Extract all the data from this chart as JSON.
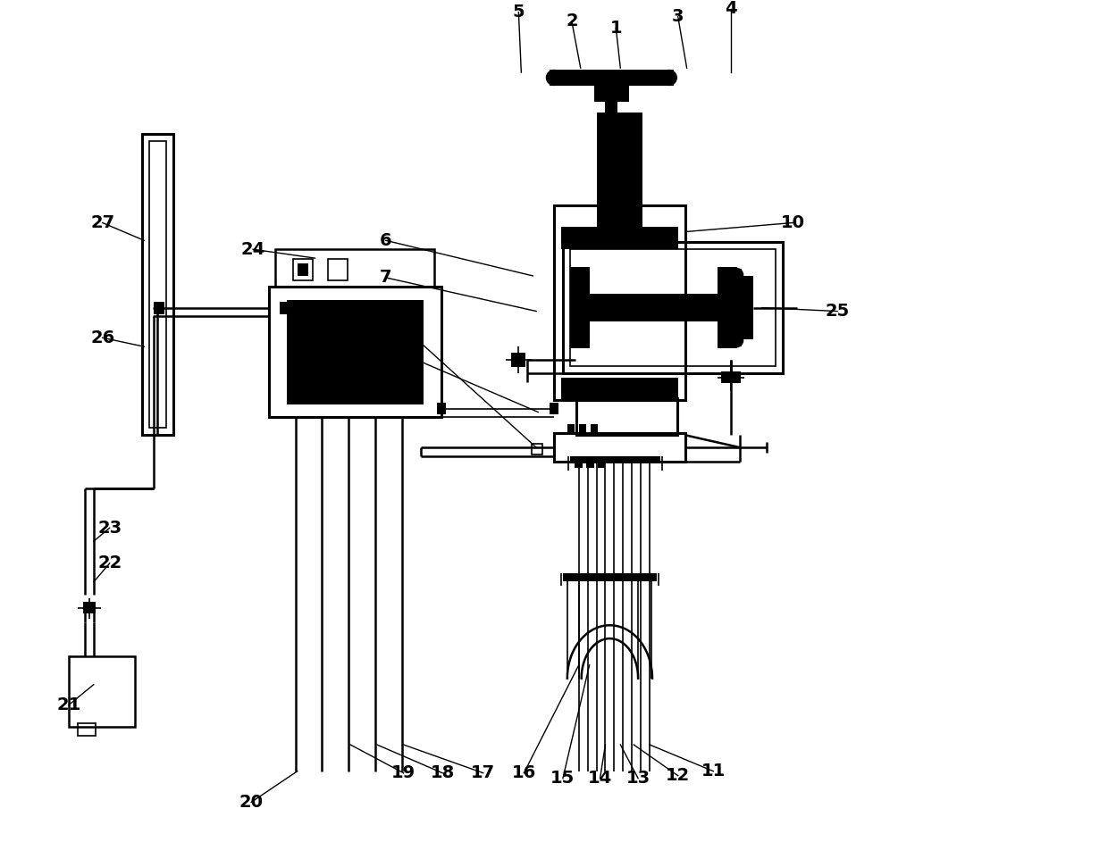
{
  "bg_color": "#ffffff",
  "line_color": "#000000",
  "black_fill": "#000000",
  "fig_width": 12.4,
  "fig_height": 9.43,
  "lw_thin": 1.2,
  "lw_med": 1.8,
  "lw_thick": 2.2,
  "label_fontsize": 14
}
